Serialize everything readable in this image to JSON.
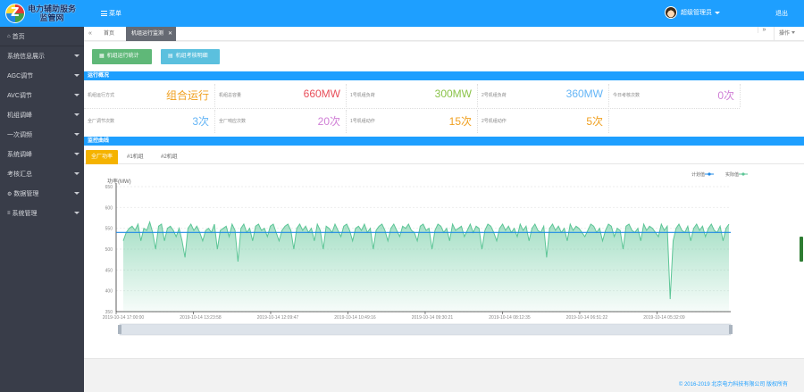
{
  "app": {
    "logo_text_line1": "电力辅助服务",
    "logo_text_line2": "监管网",
    "menu_toggle": "菜单",
    "user_name": "超级管理员",
    "logout": "退出",
    "brand_color": "#1e9fff"
  },
  "sidebar": {
    "items": [
      {
        "label": "首页",
        "icon": "home-icon",
        "has_children": false
      },
      {
        "label": "系统信息展示",
        "has_children": true
      },
      {
        "label": "AGC调节",
        "has_children": true
      },
      {
        "label": "AVC调节",
        "has_children": true
      },
      {
        "label": "机组调峰",
        "has_children": true
      },
      {
        "label": "一次调频",
        "has_children": true
      },
      {
        "label": "系统调峰",
        "has_children": true
      },
      {
        "label": "考核汇总",
        "has_children": true
      },
      {
        "label": "数据管理",
        "icon": "gear-icon",
        "has_children": true
      },
      {
        "label": "系统管理",
        "icon": "menu-icon",
        "has_children": true
      }
    ]
  },
  "tabs": {
    "home": "首页",
    "active": "机组运行监测",
    "close": "✕",
    "ops": "操作"
  },
  "toolbar": {
    "btn1": "机组运行统计",
    "btn2": "机组考核明细"
  },
  "status": {
    "title": "运行概况",
    "row1": [
      {
        "label": "机组运行方式",
        "value": "组合运行",
        "color": "#f0a020"
      },
      {
        "label": "机组总容量",
        "value": "660MW",
        "color": "#e8505b"
      },
      {
        "label": "1号机组负荷",
        "value": "300MW",
        "color": "#8bc34a"
      },
      {
        "label": "2号机组负荷",
        "value": "360MW",
        "color": "#64b5f6"
      },
      {
        "label": "今日考核次数",
        "value": "0次",
        "color": "#d07fd6"
      }
    ],
    "row2": [
      {
        "label": "全厂调节次数",
        "value": "3次",
        "color": "#64b5f6"
      },
      {
        "label": "全厂响应次数",
        "value": "20次",
        "color": "#d07fd6"
      },
      {
        "label": "1号机组动作",
        "value": "15次",
        "color": "#f0a020"
      },
      {
        "label": "2号机组动作",
        "value": "5次",
        "color": "#f0a020"
      }
    ]
  },
  "monitor": {
    "title": "监控曲线",
    "tabs": [
      "全厂功率",
      "#1机组",
      "#2机组"
    ],
    "active_tab": 0
  },
  "chart_data": {
    "type": "area",
    "ylabel": "功率(MW)",
    "yticks": [
      "650",
      "600",
      "550",
      "500",
      "450",
      "400",
      "350"
    ],
    "xtick_labels": [
      "2019-10-14 17:00:00",
      "2019-10-14 13:23:58",
      "2019-10-14 12:09:47",
      "2019-10-14 10:49:16",
      "2019-10-14 09:30:21",
      "2019-10-14 08:12:35",
      "2019-10-14 06:51:22",
      "2019-10-14 05:32:09"
    ],
    "legend": [
      {
        "name": "计划值",
        "color": "#1e88e5"
      },
      {
        "name": "实际值",
        "color": "#5cc596"
      }
    ],
    "plan_value": 540,
    "ylim": [
      350,
      650
    ],
    "actual_values": [
      520,
      540,
      550,
      555,
      545,
      560,
      520,
      550,
      545,
      565,
      540,
      500,
      555,
      560,
      520,
      550,
      555,
      545,
      530,
      550,
      520,
      480,
      550,
      560,
      545,
      555,
      540,
      520,
      545,
      550,
      540,
      560,
      500,
      545,
      550,
      555,
      530,
      560,
      545,
      470,
      550,
      560,
      540,
      550,
      520,
      555,
      560,
      545,
      550,
      530,
      555,
      560,
      540,
      520,
      545,
      555,
      560,
      545,
      500,
      550,
      560,
      545,
      555,
      540,
      550,
      520,
      560,
      545,
      500,
      555,
      550,
      540,
      560,
      545,
      530,
      555,
      560,
      545,
      520,
      550,
      555,
      545,
      560,
      540,
      550,
      500,
      545,
      555,
      560,
      545,
      520,
      550,
      560,
      545,
      530,
      555,
      550,
      560,
      545,
      540,
      520,
      555,
      560,
      545,
      550,
      500,
      545,
      560,
      555,
      540,
      550,
      520,
      560,
      545,
      550,
      555,
      530,
      545,
      560,
      540,
      555,
      550,
      500,
      545,
      560,
      555,
      540,
      520,
      550,
      560,
      545,
      555,
      540,
      550,
      530,
      560,
      545,
      555,
      520,
      550,
      560,
      545,
      540,
      555,
      480,
      550,
      560,
      545,
      555,
      540,
      550,
      520,
      560,
      545,
      555,
      550,
      540,
      530,
      545,
      560,
      555,
      540,
      550,
      520,
      545,
      560,
      555,
      530,
      550,
      545,
      500,
      555,
      560,
      545,
      540,
      550,
      520,
      560,
      545,
      555,
      550,
      540,
      530,
      560,
      545,
      555,
      380,
      520,
      550,
      560,
      545,
      540,
      555,
      520,
      550,
      560,
      545,
      555,
      530,
      550,
      560,
      545,
      540,
      555,
      520,
      550,
      560
    ]
  },
  "footer": {
    "copyright": "© 2016-2019 北京电力科技有限公司 版权所有"
  }
}
